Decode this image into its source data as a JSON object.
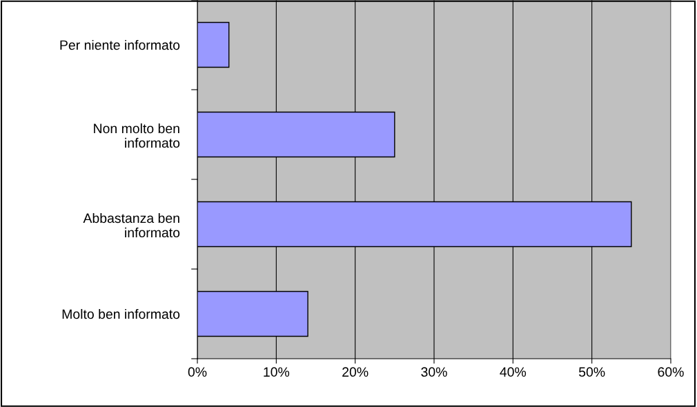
{
  "chart_data": {
    "type": "bar",
    "orientation": "horizontal",
    "categories": [
      "Per niente informato",
      "Non molto ben\ninformato",
      "Abbastanza ben\ninformato",
      "Molto ben informato"
    ],
    "values": [
      4,
      25,
      55,
      14
    ],
    "color": "#9999ff",
    "xlim": [
      0,
      60
    ],
    "xticks": [
      {
        "value": 0,
        "label": "0%"
      },
      {
        "value": 10,
        "label": "10%"
      },
      {
        "value": 20,
        "label": "20%"
      },
      {
        "value": 30,
        "label": "30%"
      },
      {
        "value": 40,
        "label": "40%"
      },
      {
        "value": 50,
        "label": "50%"
      },
      {
        "value": 60,
        "label": "60%"
      }
    ],
    "grid": "x",
    "legend": false
  }
}
